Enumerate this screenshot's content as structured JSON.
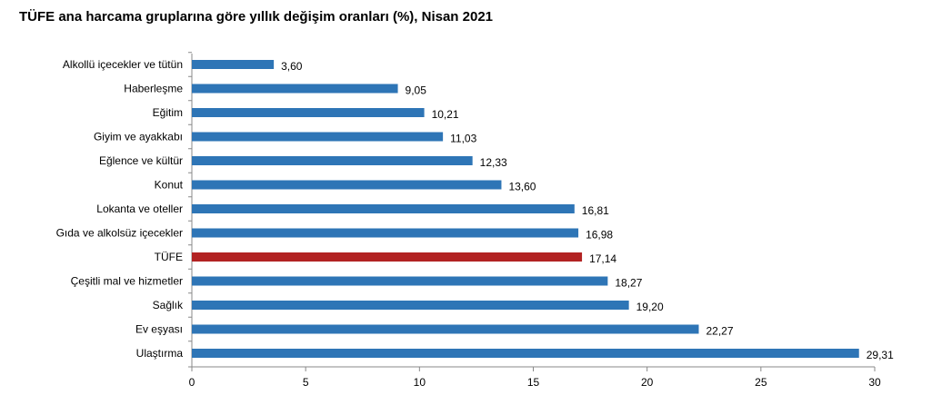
{
  "chart_data": {
    "type": "bar",
    "orientation": "horizontal",
    "title": "TÜFE ana harcama gruplarına göre yıllık değişim oranları (%), Nisan 2021",
    "categories": [
      "Alkollü içecekler ve tütün",
      "Haberleşme",
      "Eğitim",
      "Giyim ve ayakkabı",
      "Eğlence ve kültür",
      "Konut",
      "Lokanta ve oteller",
      "Gıda ve alkolsüz içecekler",
      "TÜFE",
      "Çeşitli mal ve hizmetler",
      "Sağlık",
      "Ev eşyası",
      "Ulaştırma"
    ],
    "values": [
      3.6,
      9.05,
      10.21,
      11.03,
      12.33,
      13.6,
      16.81,
      16.98,
      17.14,
      18.27,
      19.2,
      22.27,
      29.31
    ],
    "value_labels": [
      "3,60",
      "9,05",
      "10,21",
      "11,03",
      "12,33",
      "13,60",
      "16,81",
      "16,98",
      "17,14",
      "18,27",
      "19,20",
      "22,27",
      "29,31"
    ],
    "xlim": [
      0,
      30
    ],
    "xticks": [
      "0",
      "5",
      "10",
      "15",
      "20",
      "25",
      "30"
    ],
    "xtick_values": [
      0,
      5,
      10,
      15,
      20,
      25,
      30
    ],
    "grid": false,
    "legend": "none",
    "highlight_category": "TÜFE",
    "colors": {
      "bar": "#2E75B6",
      "highlight": "#B22222",
      "axis": "#888888"
    }
  }
}
